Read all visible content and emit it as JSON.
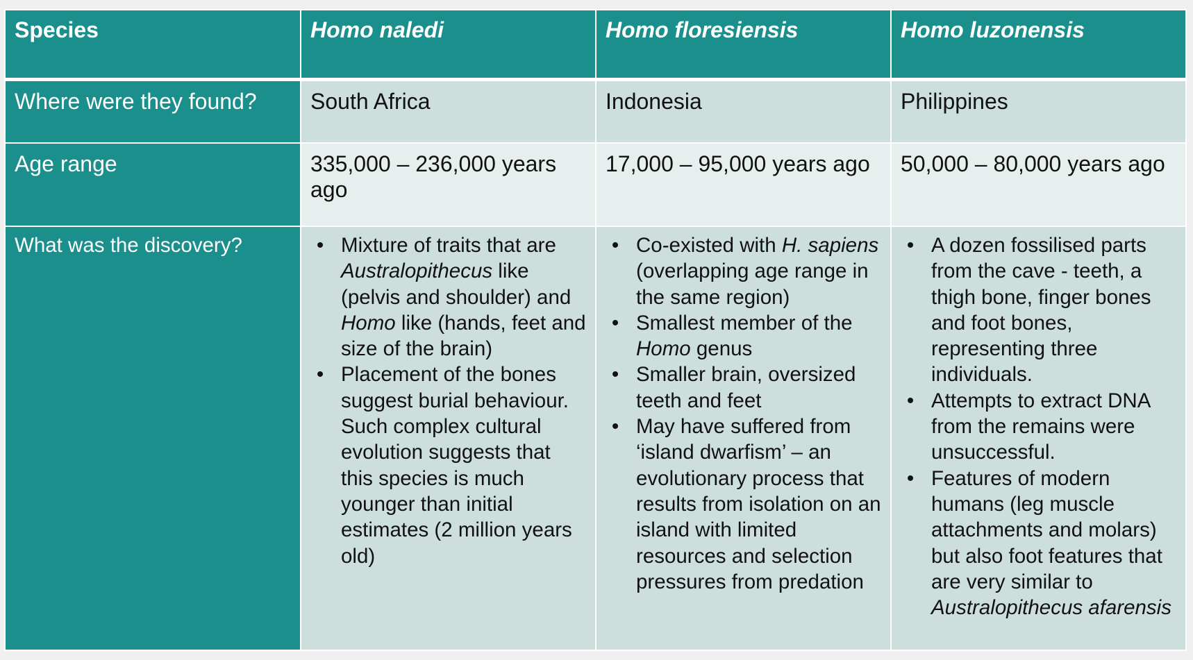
{
  "header": {
    "species_label": "Species",
    "species": [
      "Homo naledi",
      "Homo floresiensis",
      "Homo luzonensis"
    ]
  },
  "rows": {
    "found": {
      "label": "Where were they found?",
      "values": [
        "South Africa",
        "Indonesia",
        "Philippines"
      ]
    },
    "age": {
      "label": "Age range",
      "values": [
        "335,000 – 236,000 years ago",
        "17,000 – 95,000 years ago",
        "50,000 – 80,000 years ago"
      ]
    },
    "discovery": {
      "label": "What was the discovery?",
      "bullet": "•",
      "naledi": {
        "b1": {
          "t1": "Mixture of traits that are ",
          "i1": "Australopithecus",
          "t2": " like (pelvis and shoulder) and ",
          "i2": "Homo",
          "t3": " like (hands, feet and size of the brain)"
        },
        "b2": "Placement of the bones suggest burial behaviour. Such complex cultural evolution suggests that this species is much younger than initial estimates (2 million years old)"
      },
      "floresiensis": {
        "b1": {
          "t1": "Co-existed with ",
          "i1": "H. sapiens",
          "t2": " (overlapping age range in the same region)"
        },
        "b2": {
          "t1": "Smallest member of the ",
          "i1": "Homo",
          "t2": " genus"
        },
        "b3": "Smaller brain, oversized teeth and feet",
        "b4": "May have suffered from ‘island dwarfism’ – an evolutionary process that results from isolation on an island with limited resources and selection pressures from predation"
      },
      "luzonensis": {
        "b1": "A dozen fossilised parts from the cave - teeth, a thigh bone, finger bones and foot bones, representing three individuals.",
        "b2": "Attempts to extract DNA from the remains were unsuccessful.",
        "b3": {
          "t1": "Features of modern humans (leg muscle attachments and molars) but also foot features that are very similar to ",
          "i1": "Australopithecus afarensis"
        }
      }
    }
  }
}
